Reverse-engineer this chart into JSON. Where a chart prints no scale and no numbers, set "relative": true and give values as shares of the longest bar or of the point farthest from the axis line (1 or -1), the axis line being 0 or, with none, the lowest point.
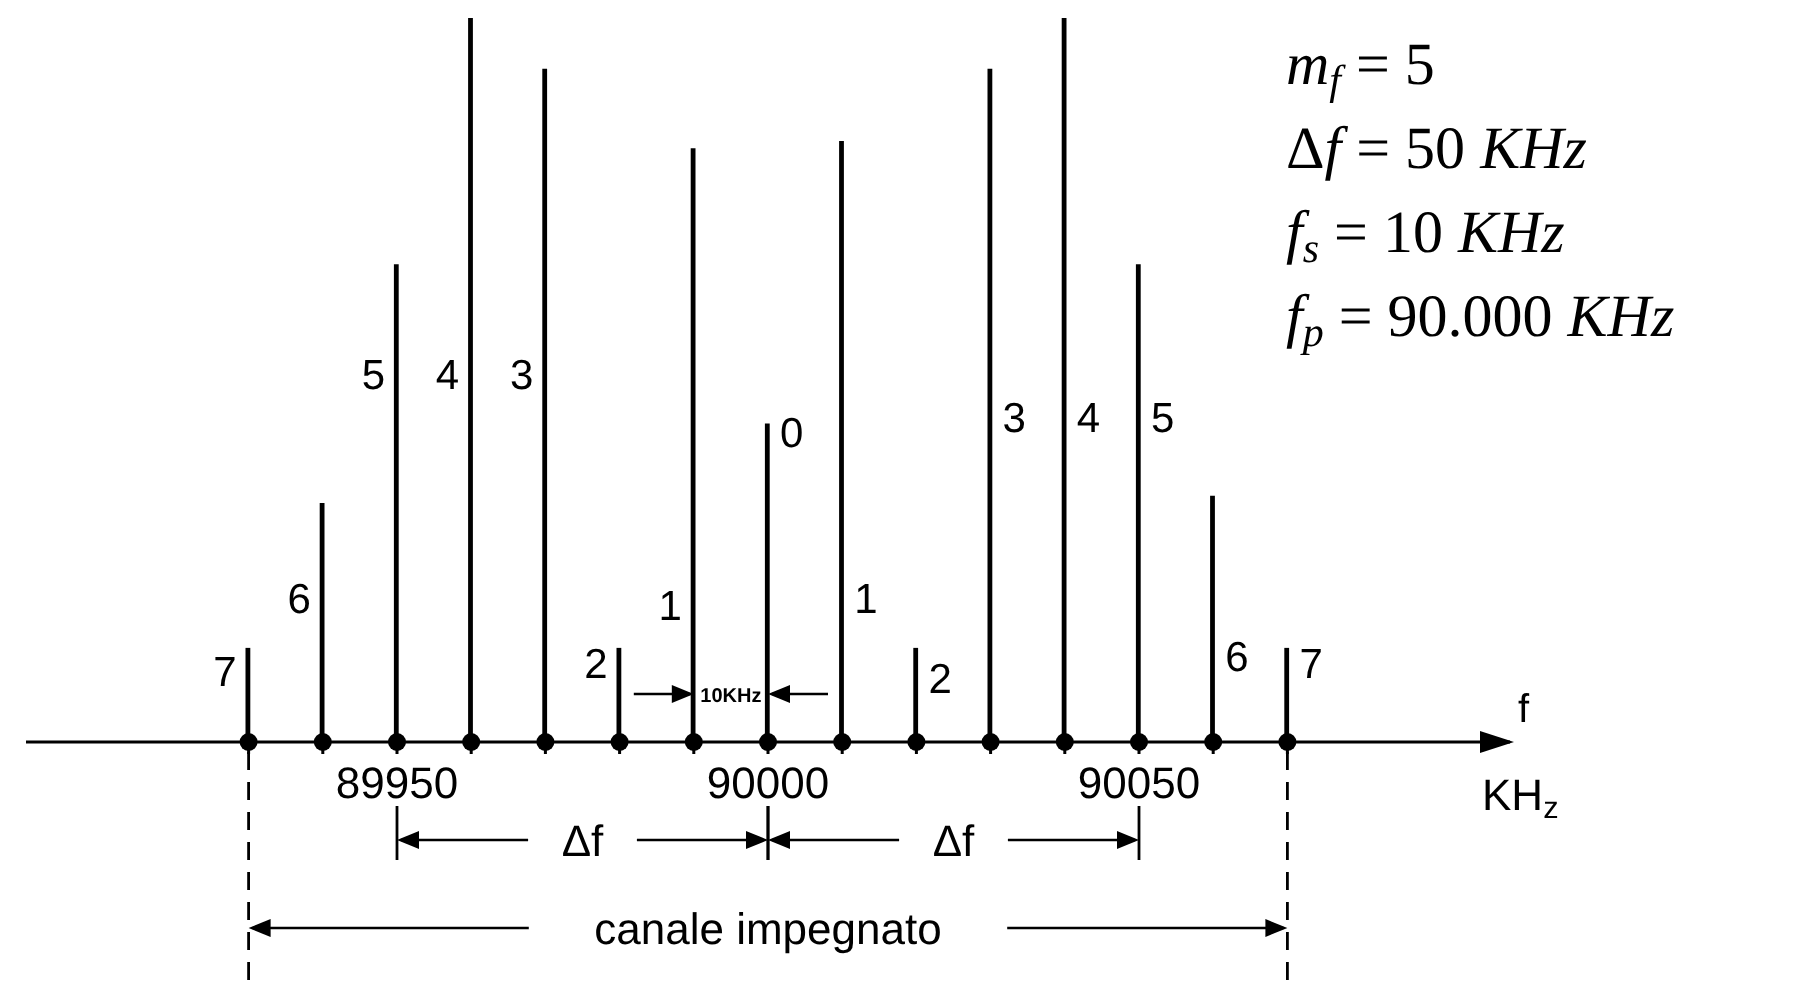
{
  "chart_data": {
    "type": "bar",
    "relative": true,
    "x": [
      89930,
      89940,
      89950,
      89960,
      89970,
      89980,
      89990,
      90000,
      90010,
      90020,
      90030,
      90040,
      90050,
      90060,
      90070
    ],
    "values": [
      0.13,
      0.33,
      0.66,
      1,
      0.93,
      0.13,
      0.82,
      0.44,
      0.83,
      0.13,
      0.93,
      1,
      0.66,
      0.34,
      0.13
    ],
    "color": "#000000",
    "xlim": [
      89900,
      90100
    ],
    "xticks": [
      {
        "value": 89930,
        "label": null
      },
      {
        "value": 89940,
        "label": null
      },
      89950,
      {
        "value": 89960,
        "label": null
      },
      {
        "value": 89970,
        "label": null
      },
      {
        "value": 89980,
        "label": null
      },
      {
        "value": 89990,
        "label": null
      },
      90000,
      {
        "value": 90010,
        "label": null
      },
      {
        "value": 90020,
        "label": null
      },
      {
        "value": 90030,
        "label": null
      },
      {
        "value": 90040,
        "label": null
      },
      90050,
      {
        "value": 90060,
        "label": null
      },
      {
        "value": 90070,
        "label": null
      }
    ],
    "xlabel": "f",
    "annotations": [
      {
        "text": "7",
        "x": 89930,
        "y": 0.1
      },
      {
        "text": "6",
        "x": 89940,
        "y": 0.2
      },
      {
        "text": "5",
        "x": 89950,
        "y": 0.51
      },
      {
        "text": "4",
        "x": 89960,
        "y": 0.51
      },
      {
        "text": "3",
        "x": 89970,
        "y": 0.51
      },
      {
        "text": "2",
        "x": 89980,
        "y": 0.11
      },
      {
        "text": "1",
        "x": 89990,
        "y": 0.19
      },
      {
        "text": "0",
        "x": 90000,
        "y": 0.43
      },
      {
        "text": "1",
        "x": 90010,
        "y": 0.2
      },
      {
        "text": "2",
        "x": 90020,
        "y": 0.09
      },
      {
        "text": "3",
        "x": 90030,
        "y": 0.45
      },
      {
        "text": "4",
        "x": 90040,
        "y": 0.45
      },
      {
        "text": "5",
        "x": 90050,
        "y": 0.45
      },
      {
        "text": "6",
        "x": 90060,
        "y": 0.12
      },
      {
        "text": "7",
        "x": 90070,
        "y": 0.11
      },
      "m$_{f}$ = 5",
      "Δf = 50 KHz",
      "f$_{s}$ = 10 KHz",
      "f$_{p}$ = 90.000 KHz",
      "KH$_{z}$",
      "10KHz",
      "Δf",
      "Δf",
      "canale impegnato"
    ]
  }
}
